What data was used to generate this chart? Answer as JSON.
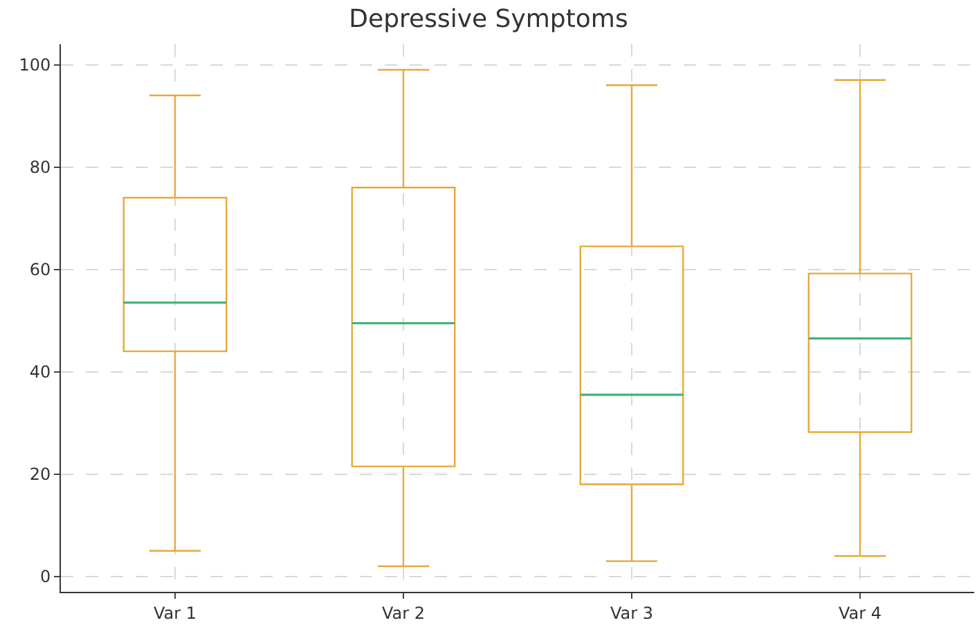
{
  "chart_data": {
    "type": "box",
    "title": "Depressive Symptoms",
    "categories": [
      "Var 1",
      "Var 2",
      "Var 3",
      "Var 4"
    ],
    "series": [
      {
        "color": "#e8a838",
        "boxes": [
          {
            "low": 5,
            "q1": 44,
            "median": 53.5,
            "q3": 74,
            "high": 94
          },
          {
            "low": 2,
            "q1": 21.5,
            "median": 49.5,
            "q3": 76,
            "high": 99
          },
          {
            "low": 3,
            "q1": 18,
            "median": 35.5,
            "q3": 64.5,
            "high": 96
          },
          {
            "low": 4,
            "q1": 28.2,
            "median": 46.5,
            "q3": 59.2,
            "high": 97
          }
        ]
      }
    ],
    "ylim": [
      -3,
      104
    ],
    "yticks": [
      0,
      20,
      40,
      60,
      80,
      100
    ],
    "grid": true
  }
}
